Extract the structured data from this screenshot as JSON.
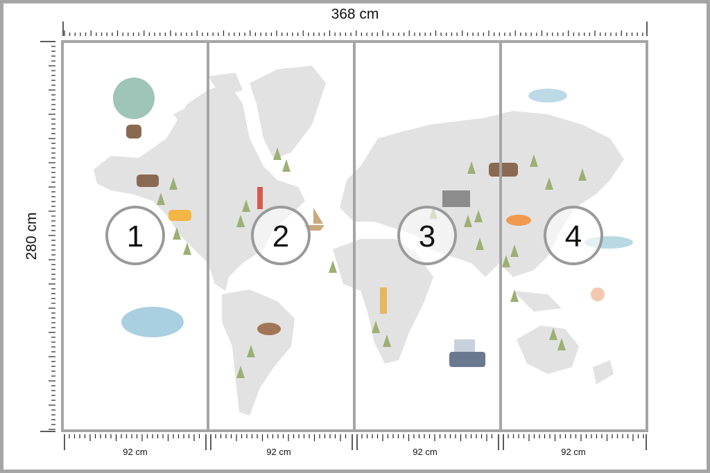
{
  "dimensions": {
    "total_width": "368 cm",
    "total_height": "280 cm",
    "panel_widths": [
      "92 cm",
      "92 cm",
      "92 cm",
      "92 cm"
    ]
  },
  "panels": [
    {
      "number": "1"
    },
    {
      "number": "2"
    },
    {
      "number": "3"
    },
    {
      "number": "4"
    }
  ],
  "colors": {
    "frame": "#a5a5a5",
    "land": "#e2e2e2",
    "ruler": "#222222",
    "circle_stroke": "#9a9a9a"
  }
}
